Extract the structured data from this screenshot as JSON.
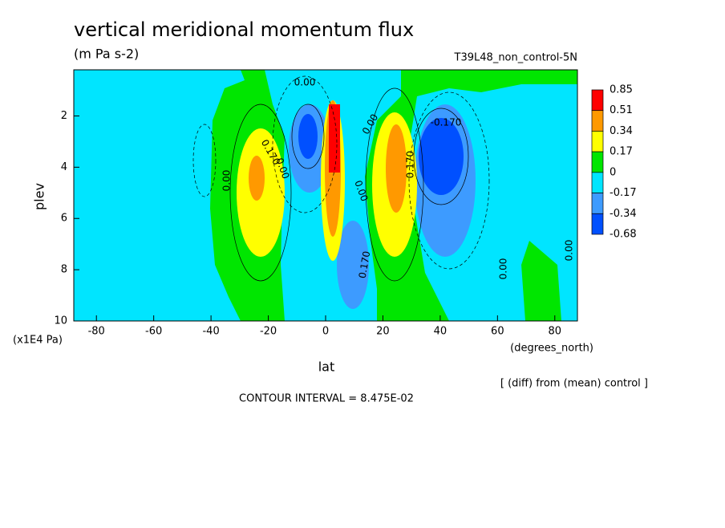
{
  "chart_data": {
    "type": "contour",
    "title": "vertical meridional momentum flux",
    "subtitle": "(m Pa s-2)",
    "dataset": "T39L48_non_control-5N",
    "x_label": "lat",
    "x_units": "(degrees_north)",
    "y_label": "plev",
    "y_units": "(x1E4 Pa)",
    "note": "[ (diff) from (mean) control ]",
    "contour_interval": "CONTOUR INTERVAL = 8.475E-02",
    "xlim": [
      -87.9,
      87.9
    ],
    "xticks": [
      -80,
      -60,
      -40,
      -20,
      0,
      20,
      40,
      60,
      80
    ],
    "ylim": [
      0.2,
      10
    ],
    "yticks": [
      2,
      4,
      6,
      8,
      10
    ],
    "levels": [
      0.85,
      0.51,
      0.34,
      0.17,
      0,
      -0.17,
      -0.34,
      -0.68
    ],
    "colors": [
      "#ff0000",
      "#ff9900",
      "#ffff00",
      "#00e600",
      "#00e5ff",
      "#3d9bff",
      "#0050ff"
    ],
    "contour_labels": [
      "0.00",
      "0.00",
      "0.00",
      "0.170",
      "0.00",
      "-0.170",
      "0.170",
      "0.00",
      "0.00",
      "0.170",
      "0.00"
    ]
  }
}
